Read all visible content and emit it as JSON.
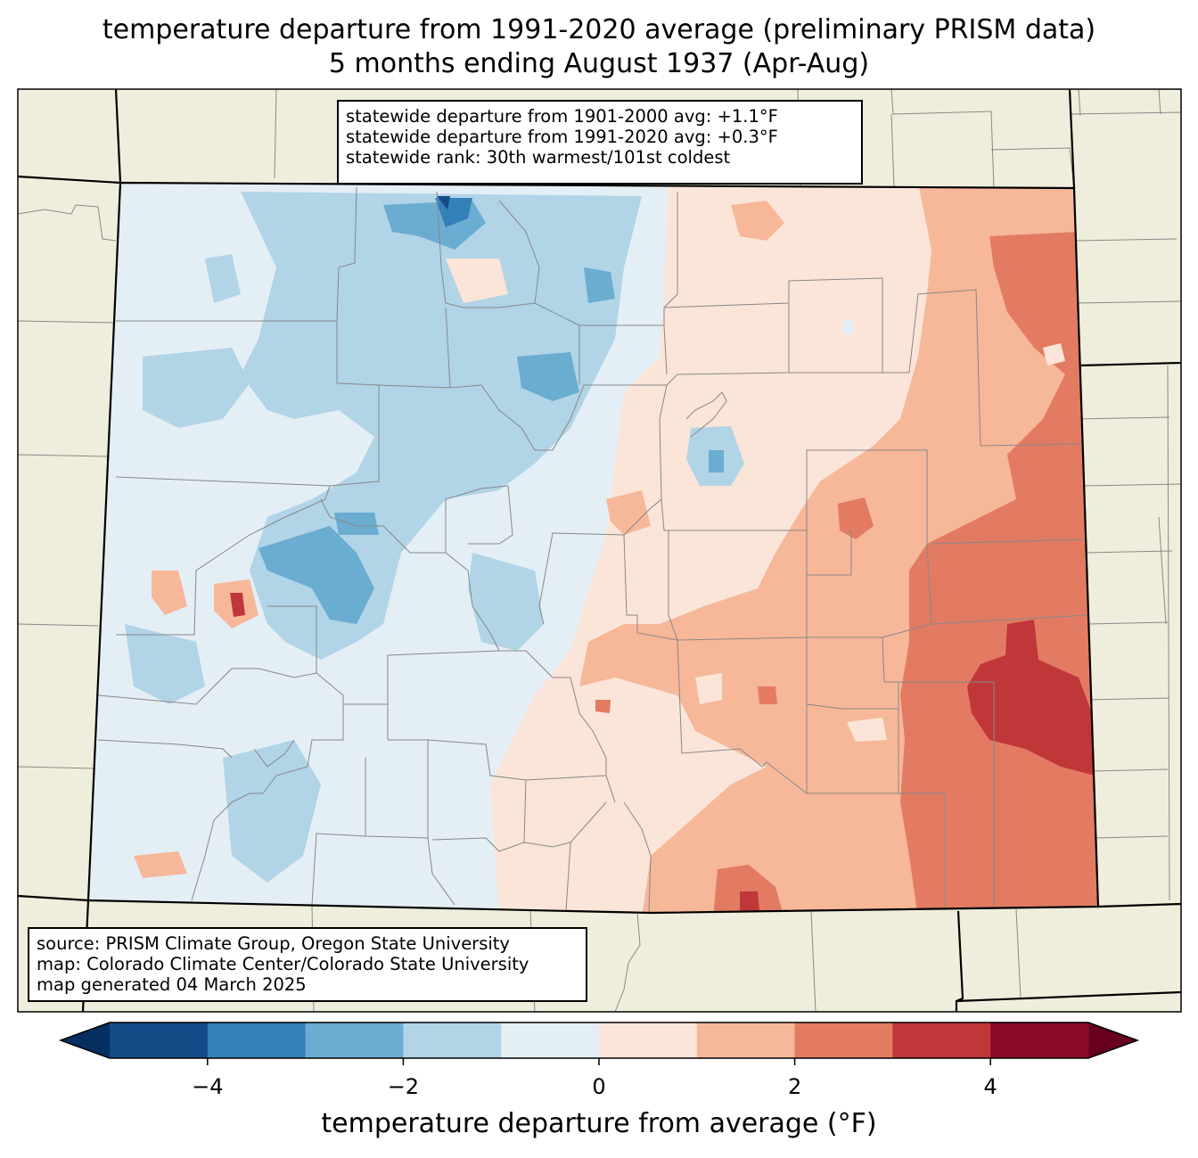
{
  "title": {
    "line1": "temperature departure from 1991-2020 average (preliminary PRISM data)",
    "line2": "5 months ending August 1937 (Apr-Aug)"
  },
  "stats": {
    "line1": "statewide departure from 1901-2000 avg: +1.1°F",
    "line2": "statewide departure from 1991-2020 avg: +0.3°F",
    "line3": "statewide rank: 30th warmest/101st coldest"
  },
  "credits": {
    "line1": "source: PRISM Climate Group, Oregon State University",
    "line2": "map: Colorado Climate Center/Colorado State University",
    "line3": "map generated 04 March 2025"
  },
  "colorbar": {
    "label": "temperature departure from average (°F)",
    "ticks": [
      {
        "value": -4,
        "label": "−4"
      },
      {
        "value": -2,
        "label": "−2"
      },
      {
        "value": 0,
        "label": "0"
      },
      {
        "value": 2,
        "label": "2"
      },
      {
        "value": 4,
        "label": "4"
      }
    ],
    "range": [
      -5,
      5
    ],
    "bins": [
      {
        "from": -5,
        "to": -4,
        "color": "#134b87"
      },
      {
        "from": -4,
        "to": -3,
        "color": "#3480b9"
      },
      {
        "from": -3,
        "to": -2,
        "color": "#6bacd1"
      },
      {
        "from": -2,
        "to": -1,
        "color": "#b1d4e7"
      },
      {
        "from": -1,
        "to": 0,
        "color": "#e4eef5"
      },
      {
        "from": 0,
        "to": 1,
        "color": "#fbe5d8"
      },
      {
        "from": 1,
        "to": 2,
        "color": "#f7b799"
      },
      {
        "from": 2,
        "to": 3,
        "color": "#e27b62"
      },
      {
        "from": 3,
        "to": 4,
        "color": "#c0373a"
      },
      {
        "from": 4,
        "to": 5,
        "color": "#8a0b25"
      }
    ],
    "under_color": "#053061",
    "over_color": "#67001f"
  },
  "colors": {
    "land": "#efeedc",
    "county_line": "#888888",
    "state_line": "#000000"
  }
}
